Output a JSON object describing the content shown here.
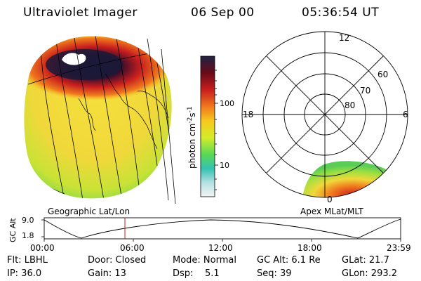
{
  "header": {
    "title": "Ultraviolet Imager",
    "date": "06 Sep 00",
    "time": "05:36:54 UT"
  },
  "colorbar": {
    "unit_label": "photon cm",
    "exp1": "-2",
    "mid": "s",
    "exp2": "-1",
    "tick_100": "100",
    "tick_10": "10",
    "gradient": [
      "#222244",
      "#6a0a18",
      "#c81e1e",
      "#f07a1e",
      "#f8c81e",
      "#d4ec2a",
      "#58d856",
      "#34c2b0",
      "#b4e0e4",
      "#f4f4f4"
    ]
  },
  "left_panel": {
    "label": "Geographic Lat/Lon"
  },
  "right_panel": {
    "label": "Apex MLat/MLT",
    "mlt_12": "12",
    "mlt_18": "18",
    "mlt_6": "6",
    "mlt_0": "0",
    "lat_60": "60",
    "lat_70": "70",
    "lat_80": "80"
  },
  "altitude_plot": {
    "ylabel": "GC Alt",
    "ytick_top": "9.0",
    "ytick_bottom": "1.8",
    "xticks": [
      "00:00",
      "06:00",
      "12:00",
      "18:00",
      "23:59"
    ]
  },
  "info": {
    "flt": "Flt: LBHL",
    "door": "Door: Closed",
    "mode": "Mode: Normal",
    "gcalt": "GC Alt: 6.1 Re",
    "glat": "GLat:  21.7",
    "ip": "IP: 36.0",
    "gain": "Gain: 13",
    "dsp": "Dsp:    5.1",
    "seq": "Seq: 39",
    "glon": "GLon: 293.2"
  },
  "colors": {
    "marker": "#c81e1e",
    "line": "#000000"
  }
}
